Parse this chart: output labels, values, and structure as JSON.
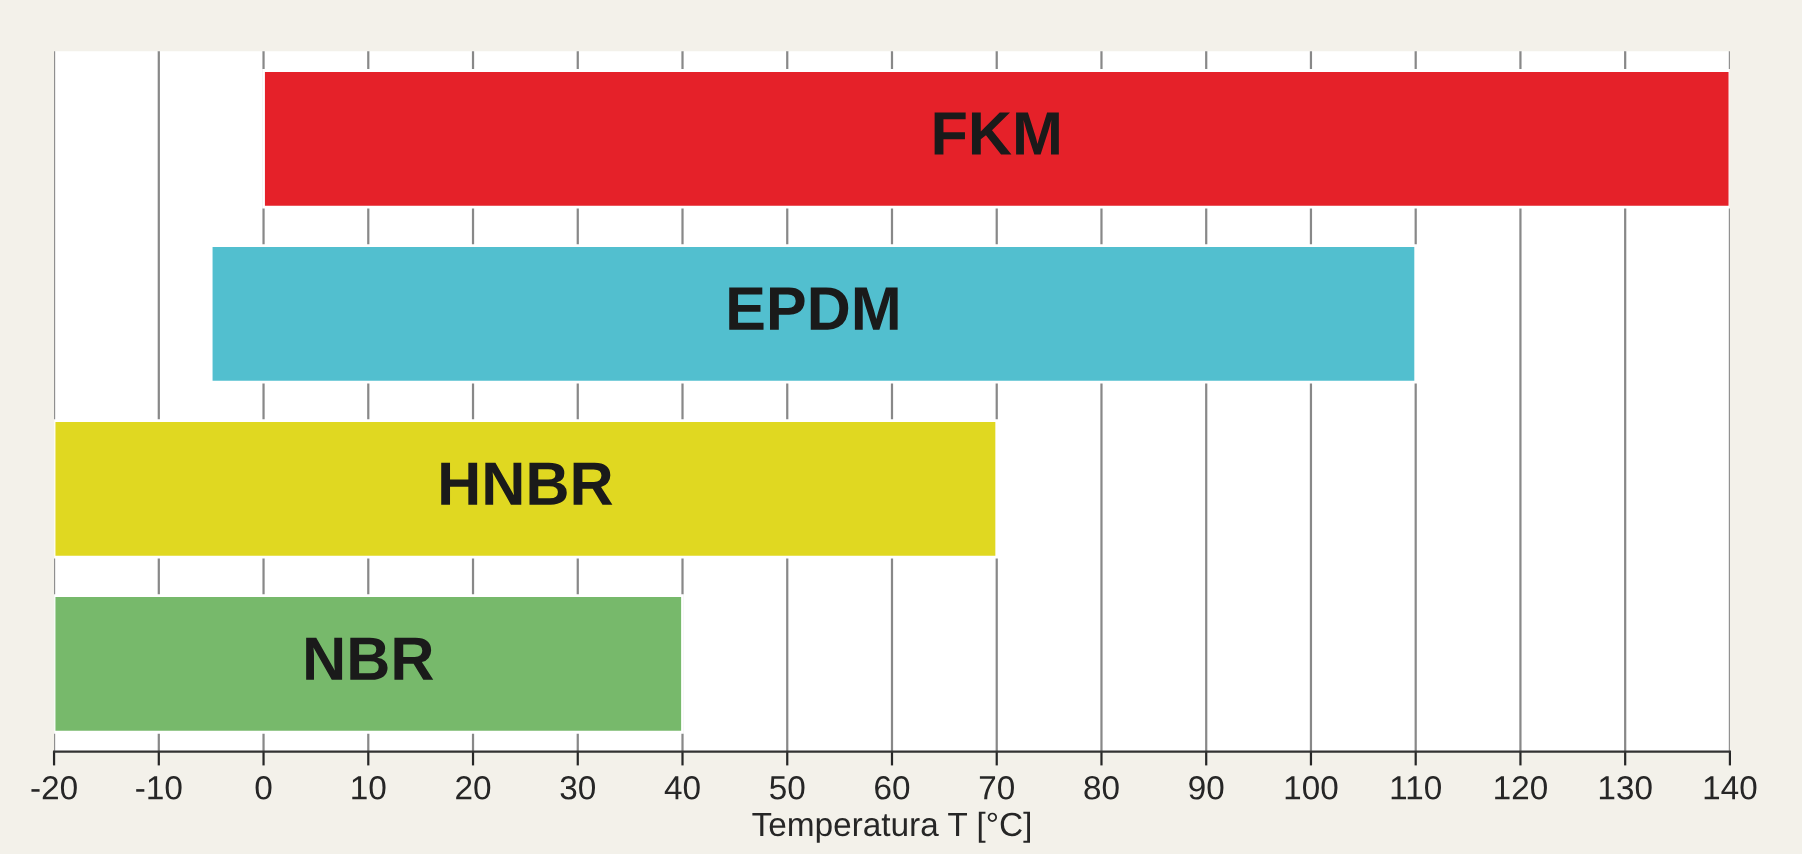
{
  "chart_data": {
    "type": "bar",
    "orientation": "horizontal",
    "xlabel": "Temperatura T [°C]",
    "categories": [
      "FKM",
      "EPDM",
      "HNBR",
      "NBR"
    ],
    "base": [
      0,
      -5,
      -20,
      -20
    ],
    "values": [
      140,
      115,
      90,
      60
    ],
    "colors": [
      "#e52129",
      "#52bfcf",
      "#e0d821",
      "#77b96b"
    ],
    "xlim": [
      -20,
      140
    ],
    "xticks": [
      -20,
      -10,
      0,
      10,
      20,
      30,
      40,
      50,
      60,
      70,
      80,
      90,
      100,
      110,
      120,
      130,
      140
    ],
    "grid": "x",
    "tick_labels": "x"
  }
}
